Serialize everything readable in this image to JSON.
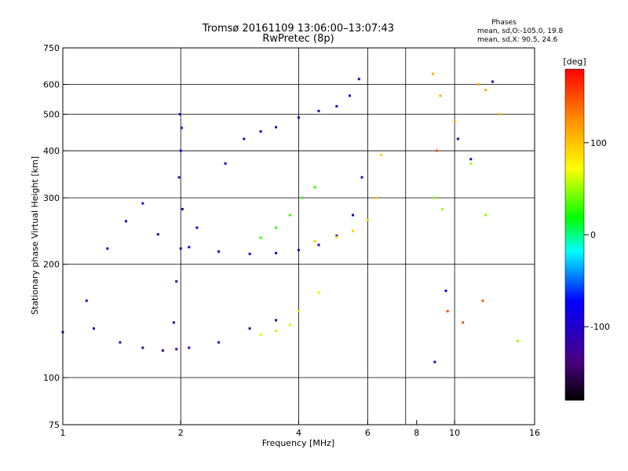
{
  "chart_data": {
    "type": "scatter",
    "title": "Tromsø 20161109 13:06:00–13:07:43",
    "subtitle": "RwPretec (8p)",
    "xlabel": "Frequency [MHz]",
    "ylabel": "Stationary phase Virtual Height [km]",
    "x_scale": "log2",
    "y_scale": "log",
    "xlim": [
      1,
      16
    ],
    "ylim": [
      75,
      750
    ],
    "x_ticks": [
      1,
      2,
      4,
      6,
      8,
      10,
      16
    ],
    "x_tick_labels": [
      "1",
      "2",
      "4",
      "6",
      "8",
      "10",
      "16"
    ],
    "x_grid": [
      2,
      4,
      6,
      7.5,
      10
    ],
    "y_ticks": [
      75,
      100,
      200,
      300,
      400,
      500,
      600,
      750
    ],
    "y_tick_labels": [
      "75",
      "100",
      "200",
      "300",
      "400",
      "500",
      "600",
      "750"
    ],
    "y_grid": [
      100,
      200,
      300,
      400,
      500,
      600
    ],
    "grid": true,
    "info": {
      "heading": "Phases",
      "line1": "mean, sd,O:-105.0, 19.8",
      "line2": "mean, sd,X:  90.5, 24.6"
    },
    "colorbar": {
      "unit": "[deg]",
      "range": [
        -180,
        180
      ],
      "ticks": [
        100,
        0,
        -100
      ],
      "tick_labels": [
        "100",
        "0",
        "-100"
      ],
      "colors": [
        "#000000",
        "#4b0082",
        "#0000ff",
        "#00ffff",
        "#00ff00",
        "#ffff00",
        "#ff8c00",
        "#ff0000"
      ]
    },
    "series": [
      {
        "phase_deg": -115,
        "x": [
          1.0,
          1.2,
          1.4,
          1.6,
          1.8,
          1.95,
          2.1,
          2.5,
          3.0,
          3.5
        ],
        "y": [
          132,
          135,
          124,
          120,
          118,
          119,
          120,
          124,
          135,
          142
        ]
      },
      {
        "phase_deg": -105,
        "x": [
          2.1,
          2.5,
          3.0,
          3.5,
          4.0,
          4.5,
          5.0,
          5.5,
          5.8
        ],
        "y": [
          222,
          216,
          213,
          214,
          218,
          225,
          238,
          270,
          340
        ]
      },
      {
        "phase_deg": -100,
        "x": [
          3.2,
          3.5,
          4.0,
          4.5,
          5.0,
          5.4,
          5.7
        ],
        "y": [
          450,
          462,
          490,
          510,
          525,
          560,
          620
        ]
      },
      {
        "phase_deg": -110,
        "x": [
          1.92,
          1.95,
          2.0,
          2.02,
          1.98,
          2.0,
          2.01,
          1.99
        ],
        "y": [
          140,
          180,
          220,
          280,
          340,
          400,
          460,
          500
        ]
      },
      {
        "phase_deg": -95,
        "x": [
          1.15,
          1.3,
          1.45,
          1.6,
          1.75,
          2.2,
          2.6,
          2.9
        ],
        "y": [
          160,
          220,
          260,
          290,
          240,
          250,
          370,
          430
        ]
      },
      {
        "phase_deg": 95,
        "x": [
          4.4,
          5.0,
          5.5,
          6.0,
          6.3,
          6.5
        ],
        "y": [
          230,
          236,
          245,
          262,
          300,
          390
        ]
      },
      {
        "phase_deg": 60,
        "x": [
          3.2,
          3.5,
          3.8,
          4.0,
          4.5
        ],
        "y": [
          130,
          133,
          138,
          150,
          168
        ]
      },
      {
        "phase_deg": 30,
        "x": [
          3.2,
          3.5,
          3.8,
          4.1,
          4.4
        ],
        "y": [
          235,
          250,
          270,
          300,
          320
        ]
      },
      {
        "phase_deg": 110,
        "x": [
          8.8,
          9.2,
          10.0,
          11.5,
          12.0,
          13.0
        ],
        "y": [
          640,
          560,
          480,
          600,
          580,
          500
        ]
      },
      {
        "phase_deg": 50,
        "x": [
          8.9,
          9.3,
          11.0,
          12.0,
          14.5
        ],
        "y": [
          300,
          280,
          370,
          270,
          125
        ]
      },
      {
        "phase_deg": -90,
        "x": [
          8.9,
          9.5,
          10.2,
          11.0,
          12.5
        ],
        "y": [
          110,
          170,
          430,
          380,
          610
        ]
      },
      {
        "phase_deg": 150,
        "x": [
          9.0,
          9.6,
          10.5,
          11.8
        ],
        "y": [
          400,
          150,
          140,
          160
        ]
      }
    ]
  }
}
